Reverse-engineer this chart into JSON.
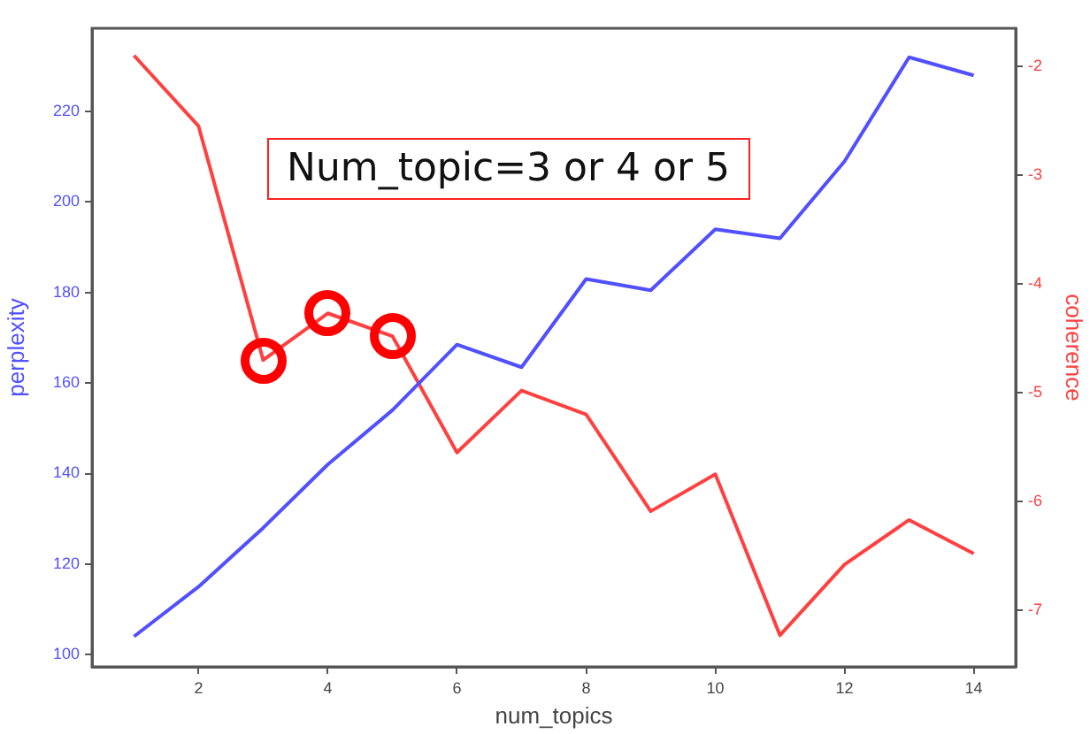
{
  "chart_data": {
    "type": "line",
    "xlabel": "num_topics",
    "ylabel": "perplexity",
    "y2label": "coherence",
    "x": [
      1,
      2,
      3,
      4,
      5,
      6,
      7,
      8,
      9,
      10,
      11,
      12,
      13,
      14
    ],
    "series": [
      {
        "color": "#5050ff",
        "values": [
          104,
          115,
          128,
          142,
          154,
          168.5,
          163.5,
          183,
          180.5,
          194,
          192,
          209,
          232,
          228
        ]
      },
      {
        "color": "#ff4040",
        "axis": "y2",
        "values": [
          -1.9,
          -2.55,
          -4.7,
          -4.27,
          -4.48,
          -5.55,
          -4.98,
          -5.2,
          -6.09,
          -5.75,
          -7.23,
          -6.58,
          -6.17,
          -6.48
        ]
      }
    ],
    "xlim": [
      0.35,
      14.65
    ],
    "xticks": [
      2,
      4,
      6,
      8,
      10,
      12,
      14
    ],
    "ylim": [
      97.3,
      238.4
    ],
    "yticks": [
      100,
      120,
      140,
      160,
      180,
      200,
      220
    ],
    "y2lim": [
      -7.52,
      -1.65
    ],
    "y2ticks": [
      -7,
      -6,
      -5,
      -4,
      -3,
      -2
    ],
    "grid": false,
    "legend": false,
    "marker": "none",
    "line_style": "solid",
    "annotations": [
      "Num_topic=3 or 4 or 5"
    ]
  }
}
